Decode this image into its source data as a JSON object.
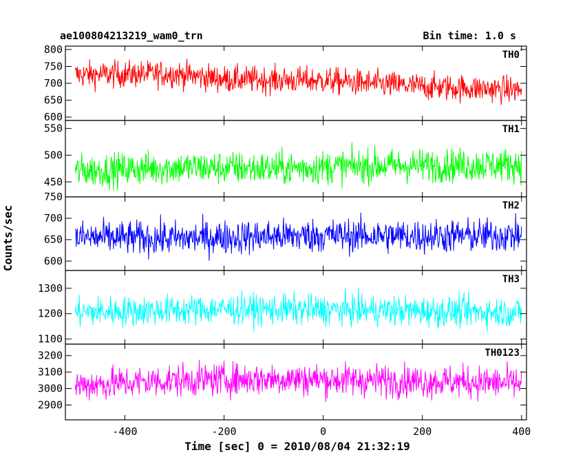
{
  "header": {
    "title": "ae100804213219_wam0_trn",
    "bin_time": "Bin time: 1.0 s"
  },
  "chart_data": {
    "type": "line",
    "xlabel": "Time [sec] 0 = 2010/08/04 21:32:19",
    "ylabel": "Counts/sec",
    "xlim": [
      -520,
      410
    ],
    "x_ticks": [
      -400,
      -200,
      0,
      200,
      400
    ],
    "x_range_data": [
      -500,
      400
    ],
    "panels": [
      {
        "name": "TH0",
        "color": "#ff0000",
        "ylim": [
          590,
          810
        ],
        "y_ticks": [
          600,
          650,
          700,
          750,
          800
        ],
        "mean": 700,
        "amplitude": 28,
        "trend": [
          [
            -500,
            725
          ],
          [
            -300,
            728
          ],
          [
            -200,
            712
          ],
          [
            0,
            708
          ],
          [
            200,
            690
          ],
          [
            400,
            680
          ]
        ]
      },
      {
        "name": "TH1",
        "color": "#00ff00",
        "ylim": [
          422,
          565
        ],
        "y_ticks": [
          450,
          500,
          550
        ],
        "mean": 478,
        "amplitude": 22,
        "trend": [
          [
            -500,
            470
          ],
          [
            -300,
            477
          ],
          [
            -100,
            475
          ],
          [
            100,
            480
          ],
          [
            400,
            482
          ]
        ]
      },
      {
        "name": "TH2",
        "color": "#0000ff",
        "ylim": [
          578,
          750
        ],
        "y_ticks": [
          600,
          650,
          700,
          750
        ],
        "mean": 655,
        "amplitude": 28,
        "trend": [
          [
            -500,
            655
          ],
          [
            -300,
            653
          ],
          [
            0,
            660
          ],
          [
            200,
            658
          ],
          [
            400,
            660
          ]
        ]
      },
      {
        "name": "TH3",
        "color": "#00ffff",
        "ylim": [
          1080,
          1370
        ],
        "y_ticks": [
          1100,
          1200,
          1300
        ],
        "mean": 1210,
        "amplitude": 42,
        "trend": [
          [
            -500,
            1205
          ],
          [
            -200,
            1218
          ],
          [
            0,
            1215
          ],
          [
            200,
            1210
          ],
          [
            400,
            1205
          ]
        ]
      },
      {
        "name": "TH0123",
        "color": "#ff00ff",
        "ylim": [
          2810,
          3270
        ],
        "y_ticks": [
          2900,
          3000,
          3100,
          3200
        ],
        "mean": 3045,
        "amplitude": 70,
        "trend": [
          [
            -500,
            3020
          ],
          [
            -300,
            3050
          ],
          [
            -100,
            3060
          ],
          [
            100,
            3050
          ],
          [
            300,
            3040
          ],
          [
            400,
            3030
          ]
        ]
      }
    ]
  }
}
